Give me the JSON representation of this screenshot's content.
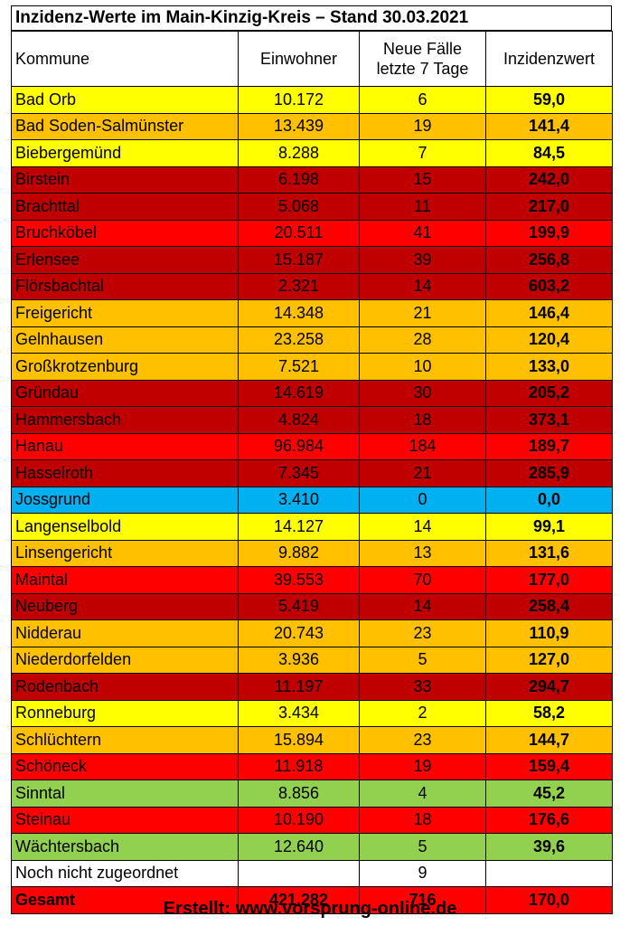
{
  "title": "Inzidenz-Werte im Main-Kinzig-Kreis – Stand 30.03.2021",
  "headers": {
    "kommune": "Kommune",
    "einwohner": "Einwohner",
    "faelle_line1": "Neue Fälle",
    "faelle_line2": "letzte 7 Tage",
    "inzidenz": "Inzidenzwert"
  },
  "colors": {
    "yellow": "#ffff00",
    "orange": "#ffc000",
    "red": "#ff0000",
    "darkred": "#c00000",
    "blue": "#00b0f0",
    "green": "#92d050",
    "white": "#ffffff"
  },
  "rows": [
    {
      "name": "Bad Orb",
      "einwohner": "10.172",
      "faelle": "6",
      "inzidenz": "59,0",
      "color": "yellow"
    },
    {
      "name": "Bad Soden-Salmünster",
      "einwohner": "13.439",
      "faelle": "19",
      "inzidenz": "141,4",
      "color": "orange"
    },
    {
      "name": "Biebergemünd",
      "einwohner": "8.288",
      "faelle": "7",
      "inzidenz": "84,5",
      "color": "yellow"
    },
    {
      "name": "Birstein",
      "einwohner": "6.198",
      "faelle": "15",
      "inzidenz": "242,0",
      "color": "darkred"
    },
    {
      "name": "Brachttal",
      "einwohner": "5.068",
      "faelle": "11",
      "inzidenz": "217,0",
      "color": "darkred"
    },
    {
      "name": "Bruchköbel",
      "einwohner": "20.511",
      "faelle": "41",
      "inzidenz": "199,9",
      "color": "red"
    },
    {
      "name": "Erlensee",
      "einwohner": "15.187",
      "faelle": "39",
      "inzidenz": "256,8",
      "color": "darkred"
    },
    {
      "name": "Flörsbachtal",
      "einwohner": "2.321",
      "faelle": "14",
      "inzidenz": "603,2",
      "color": "darkred"
    },
    {
      "name": "Freigericht",
      "einwohner": "14.348",
      "faelle": "21",
      "inzidenz": "146,4",
      "color": "orange"
    },
    {
      "name": "Gelnhausen",
      "einwohner": "23.258",
      "faelle": "28",
      "inzidenz": "120,4",
      "color": "orange"
    },
    {
      "name": "Großkrotzenburg",
      "einwohner": "7.521",
      "faelle": "10",
      "inzidenz": "133,0",
      "color": "orange"
    },
    {
      "name": "Gründau",
      "einwohner": "14.619",
      "faelle": "30",
      "inzidenz": "205,2",
      "color": "darkred"
    },
    {
      "name": "Hammersbach",
      "einwohner": "4.824",
      "faelle": "18",
      "inzidenz": "373,1",
      "color": "darkred"
    },
    {
      "name": "Hanau",
      "einwohner": "96.984",
      "faelle": "184",
      "inzidenz": "189,7",
      "color": "red"
    },
    {
      "name": "Hasselroth",
      "einwohner": "7.345",
      "faelle": "21",
      "inzidenz": "285,9",
      "color": "darkred"
    },
    {
      "name": "Jossgrund",
      "einwohner": "3.410",
      "faelle": "0",
      "inzidenz": "0,0",
      "color": "blue"
    },
    {
      "name": "Langenselbold",
      "einwohner": "14.127",
      "faelle": "14",
      "inzidenz": "99,1",
      "color": "yellow"
    },
    {
      "name": "Linsengericht",
      "einwohner": "9.882",
      "faelle": "13",
      "inzidenz": "131,6",
      "color": "orange"
    },
    {
      "name": "Maintal",
      "einwohner": "39.553",
      "faelle": "70",
      "inzidenz": "177,0",
      "color": "red"
    },
    {
      "name": "Neuberg",
      "einwohner": "5.419",
      "faelle": "14",
      "inzidenz": "258,4",
      "color": "darkred"
    },
    {
      "name": "Nidderau",
      "einwohner": "20.743",
      "faelle": "23",
      "inzidenz": "110,9",
      "color": "orange"
    },
    {
      "name": "Niederdorfelden",
      "einwohner": "3.936",
      "faelle": "5",
      "inzidenz": "127,0",
      "color": "orange"
    },
    {
      "name": "Rodenbach",
      "einwohner": "11.197",
      "faelle": "33",
      "inzidenz": "294,7",
      "color": "darkred"
    },
    {
      "name": "Ronneburg",
      "einwohner": "3.434",
      "faelle": "2",
      "inzidenz": "58,2",
      "color": "yellow"
    },
    {
      "name": "Schlüchtern",
      "einwohner": "15.894",
      "faelle": "23",
      "inzidenz": "144,7",
      "color": "orange"
    },
    {
      "name": "Schöneck",
      "einwohner": "11.918",
      "faelle": "19",
      "inzidenz": "159,4",
      "color": "red"
    },
    {
      "name": "Sinntal",
      "einwohner": "8.856",
      "faelle": "4",
      "inzidenz": "45,2",
      "color": "green"
    },
    {
      "name": "Steinau",
      "einwohner": "10.190",
      "faelle": "18",
      "inzidenz": "176,6",
      "color": "red"
    },
    {
      "name": "Wächtersbach",
      "einwohner": "12.640",
      "faelle": "5",
      "inzidenz": "39,6",
      "color": "green"
    },
    {
      "name": "Noch nicht zugeordnet",
      "einwohner": "",
      "faelle": "9",
      "inzidenz": "",
      "color": "white"
    }
  ],
  "total": {
    "name": "Gesamt",
    "einwohner": "421.282",
    "faelle": "716",
    "inzidenz": "170,0",
    "color": "red"
  },
  "credit": "Erstellt: www.vorsprung-online.de"
}
